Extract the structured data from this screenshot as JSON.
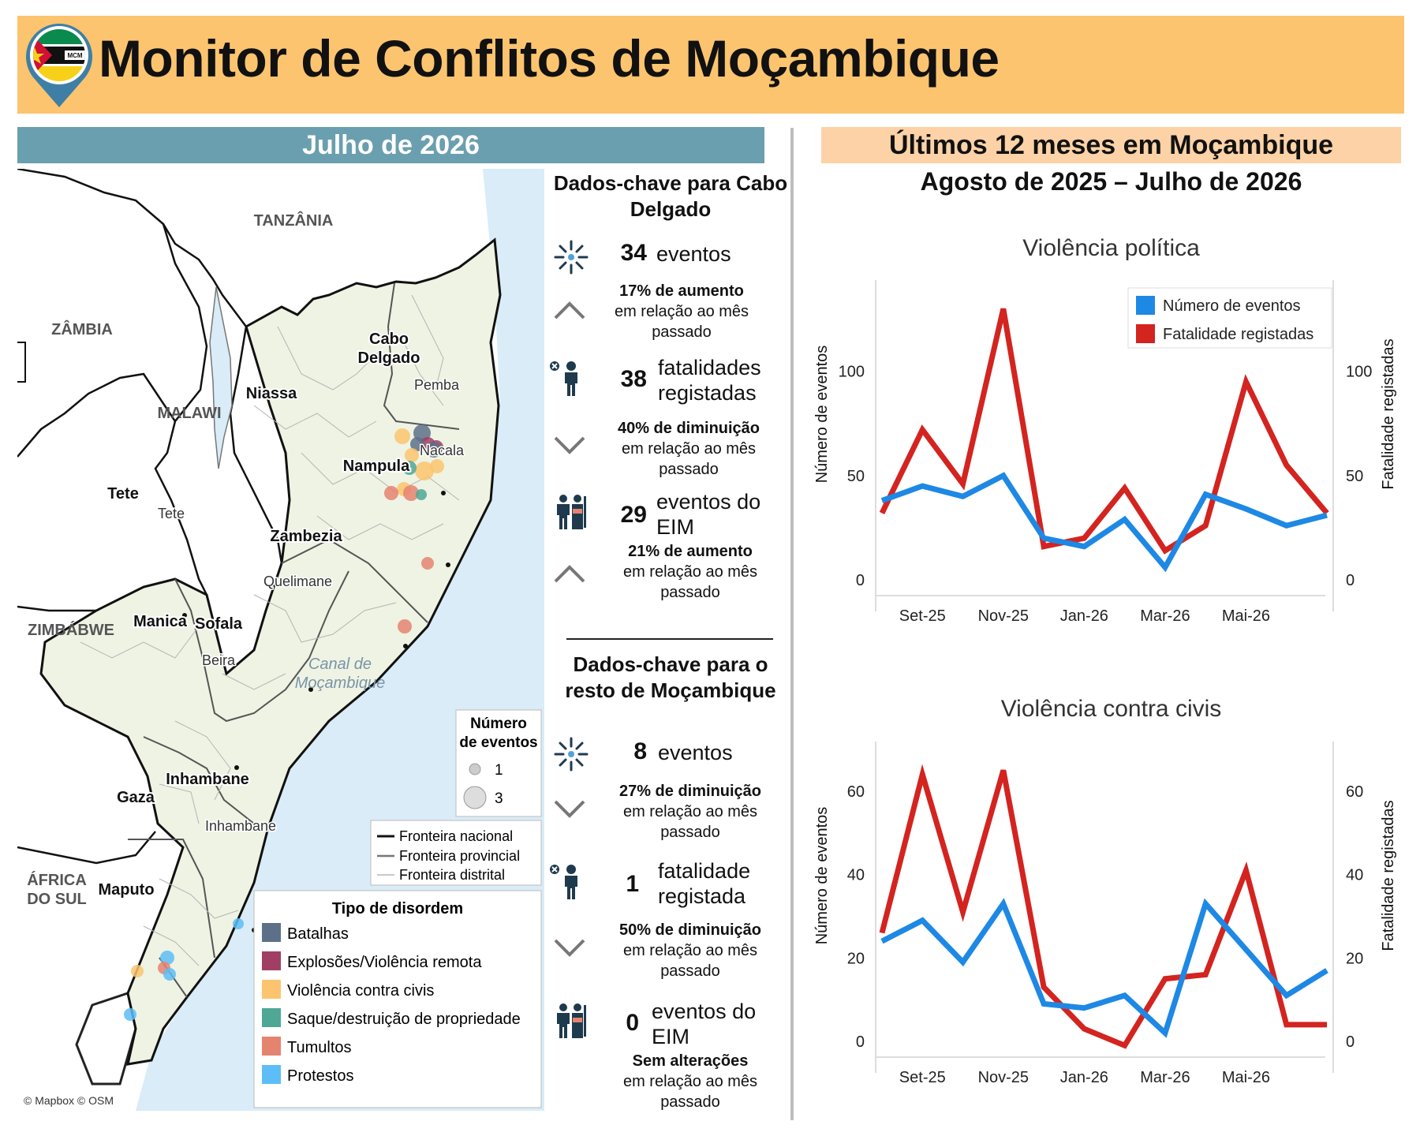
{
  "header": {
    "title": "Monitor de Conflitos de Moçambique",
    "logo_text": "MCM"
  },
  "left": {
    "banner": "Julho de 2026",
    "map": {
      "countries": [
        "TANZÂNIA",
        "ZÂMBIA",
        "MALAWI",
        "ZIMBÁBWE",
        "ÁFRICA DO SUL"
      ],
      "provinces": [
        "Cabo Delgado",
        "Niassa",
        "Nampula",
        "Tete",
        "Zambezia",
        "Manica",
        "Sofala",
        "Inhambane",
        "Gaza",
        "Maputo"
      ],
      "cities": [
        "Pemba",
        "Nacala",
        "Tete",
        "Quelimane",
        "Beira",
        "Inhambane"
      ],
      "sea_label": "Canal de Moçambique",
      "attribution": "© Mapbox © OSM",
      "size_legend": {
        "title": "Número de eventos",
        "values": [
          "1",
          "3"
        ]
      },
      "border_legend": [
        "Fronteira nacional",
        "Fronteira provincial",
        "Fronteira distrital"
      ],
      "type_legend": {
        "title": "Tipo de disordem",
        "items": [
          {
            "label": "Batalhas",
            "color": "#5D7089"
          },
          {
            "label": "Explosões/Violência remota",
            "color": "#A03F63"
          },
          {
            "label": "Violência contra civis",
            "color": "#FCC46E"
          },
          {
            "label": "Saque/destruição de propriedade",
            "color": "#4FA796"
          },
          {
            "label": "Tumultos",
            "color": "#E58371"
          },
          {
            "label": "Protestos",
            "color": "#5DBDF6"
          }
        ]
      }
    },
    "cabo_delgado": {
      "title": "Dados-chave para Cabo Delgado",
      "stats": [
        {
          "icon": "events-burst-icon",
          "value": "34",
          "unit": "eventos",
          "trend": "up",
          "pct": "17% de aumento",
          "rest": "em relação ao mês passado"
        },
        {
          "icon": "casualty-icon",
          "value": "38",
          "unit": "fatalidades registadas",
          "trend": "down",
          "pct": "40% de diminuição",
          "rest": "em relação ao mês passado"
        },
        {
          "icon": "militia-icon",
          "value": "29",
          "unit": "eventos do EIM",
          "trend": "up",
          "pct": "21% de aumento",
          "rest": "em relação ao mês passado"
        }
      ]
    },
    "rest": {
      "title": "Dados-chave para o resto de Moçambique",
      "stats": [
        {
          "icon": "events-burst-icon",
          "value": "8",
          "unit": "eventos",
          "trend": "down",
          "pct": "27% de diminuição",
          "rest": "em relação ao mês passado"
        },
        {
          "icon": "casualty-icon",
          "value": "1",
          "unit": "fatalidade registada",
          "trend": "down",
          "pct": "50% de diminuição",
          "rest": "em relação ao mês passado"
        },
        {
          "icon": "militia-icon",
          "value": "0",
          "unit": "eventos do EIM",
          "trend": "none",
          "pct": "Sem alterações",
          "rest": "em relação ao mês passado"
        }
      ]
    }
  },
  "right": {
    "banner": "Últimos 12 meses em Moçambique",
    "period": "Agosto de 2025 – Julho de 2026"
  },
  "chart_data": [
    {
      "type": "line",
      "title": "Violência política",
      "ylabel": "Número de eventos",
      "y2label": "Fatalidade registadas",
      "x": [
        "Ago-25",
        "Set-25",
        "Out-25",
        "Nov-25",
        "Dez-25",
        "Jan-26",
        "Fev-26",
        "Mar-26",
        "Abr-26",
        "Mai-26",
        "Jun-26",
        "Jul-26"
      ],
      "xticks": [
        "Set-25",
        "Nov-25",
        "Jan-26",
        "Mar-26",
        "Mai-26"
      ],
      "ylim": [
        0,
        140
      ],
      "yticks": [
        0,
        50,
        100
      ],
      "y2lim": [
        0,
        140
      ],
      "y2ticks": [
        0,
        50,
        100
      ],
      "legend": "top-right",
      "series": [
        {
          "name": "Número de eventos",
          "color": "#1E88E5",
          "axis": "left",
          "values": [
            38,
            45,
            40,
            50,
            20,
            16,
            29,
            6,
            41,
            34,
            26,
            31
          ]
        },
        {
          "name": "Fatalidade registadas",
          "color": "#D32420",
          "axis": "right",
          "values": [
            32,
            72,
            46,
            130,
            16,
            20,
            44,
            14,
            26,
            95,
            55,
            32
          ]
        }
      ]
    },
    {
      "type": "line",
      "title": "Violência contra civis",
      "ylabel": "Número de eventos",
      "y2label": "Fatalidade registadas",
      "x": [
        "Ago-25",
        "Set-25",
        "Out-25",
        "Nov-25",
        "Dez-25",
        "Jan-26",
        "Fev-26",
        "Mar-26",
        "Abr-26",
        "Mai-26",
        "Jun-26",
        "Jul-26"
      ],
      "xticks": [
        "Set-25",
        "Nov-25",
        "Jan-26",
        "Mar-26",
        "Mai-26"
      ],
      "ylim": [
        0,
        70
      ],
      "yticks": [
        0,
        20,
        40,
        60
      ],
      "y2lim": [
        0,
        70
      ],
      "y2ticks": [
        0,
        20,
        40,
        60
      ],
      "series": [
        {
          "name": "Número de eventos",
          "color": "#1E88E5",
          "axis": "left",
          "values": [
            24,
            29,
            19,
            33,
            9,
            8,
            11,
            2,
            33,
            22,
            11,
            17
          ]
        },
        {
          "name": "Fatalidade registadas",
          "color": "#D32420",
          "axis": "right",
          "values": [
            26,
            64,
            31,
            65,
            13,
            3,
            -1,
            15,
            16,
            41,
            4,
            4
          ]
        }
      ]
    }
  ]
}
